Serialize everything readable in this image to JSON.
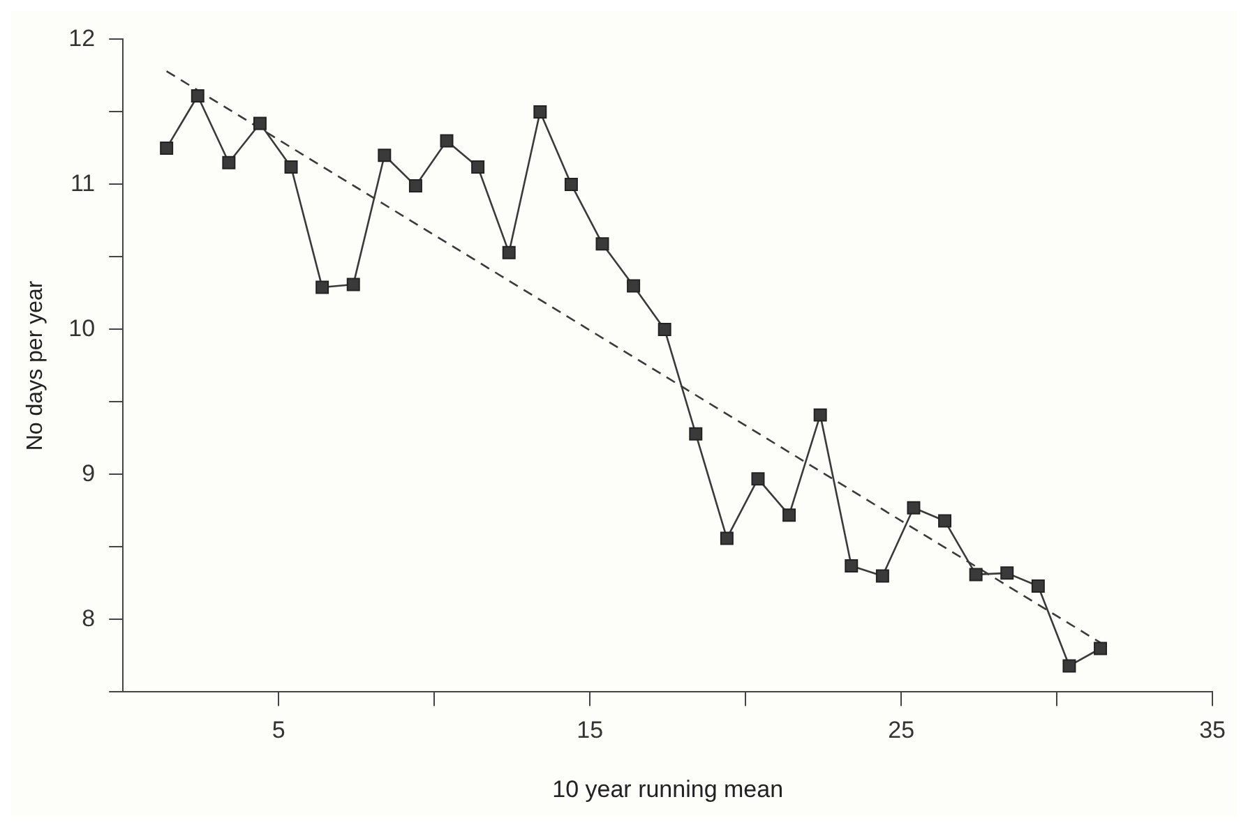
{
  "chart_data": {
    "type": "line",
    "xlabel": "10 year running mean",
    "ylabel": "No days per year",
    "xlim": [
      0,
      35
    ],
    "ylim": [
      7.5,
      12
    ],
    "xticks": [
      5,
      {
        "value": 10,
        "label": null
      },
      15,
      {
        "value": 20,
        "label": null
      },
      25,
      {
        "value": 30,
        "label": null
      },
      35
    ],
    "yticks": [
      {
        "value": 7.5,
        "label": null
      },
      8,
      {
        "value": 8.5,
        "label": null
      },
      9,
      {
        "value": 9.5,
        "label": null
      },
      10,
      {
        "value": 10.5,
        "label": null
      },
      11,
      {
        "value": 11.5,
        "label": null
      },
      12
    ],
    "grid": false,
    "legend": false,
    "marker": "square",
    "line_style": "solid",
    "series": [
      {
        "color": "#3a3a3a",
        "x": [
          1.4,
          2.4,
          3.4,
          4.4,
          5.4,
          6.4,
          7.4,
          8.4,
          9.4,
          10.4,
          11.4,
          12.4,
          13.4,
          14.4,
          15.4,
          16.4,
          17.4,
          18.4,
          19.4,
          20.4,
          21.4,
          22.4,
          23.4,
          24.4,
          25.4,
          26.4,
          27.4,
          28.4,
          29.4,
          30.4,
          31.4
        ],
        "values": [
          11.25,
          11.61,
          11.15,
          11.42,
          11.12,
          10.29,
          10.31,
          11.2,
          10.99,
          11.3,
          11.12,
          10.53,
          11.5,
          11.0,
          10.59,
          10.3,
          10.0,
          9.28,
          8.56,
          8.97,
          8.72,
          9.41,
          8.37,
          8.3,
          8.77,
          8.68,
          8.31,
          8.32,
          8.23,
          7.68,
          7.8
        ]
      },
      {
        "type": "line",
        "color": "#3a3a3a",
        "x": [
          1.4,
          31.4
        ],
        "values": [
          11.78,
          7.84
        ],
        "line_style": "dashed",
        "marker": "none"
      }
    ]
  }
}
